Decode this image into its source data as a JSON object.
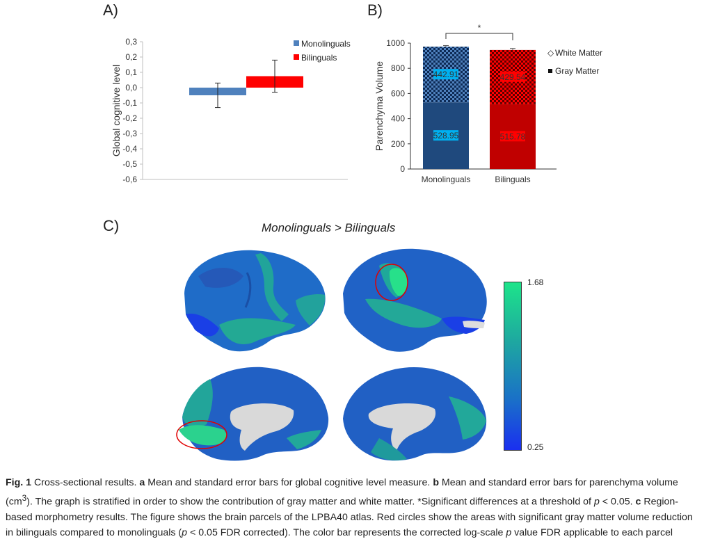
{
  "panels": {
    "a": "A)",
    "b": "B)",
    "c": "C)"
  },
  "chart_data": [
    {
      "type": "bar",
      "panel": "A",
      "ylabel": "Global cognitive level",
      "ylim": [
        -0.6,
        0.3
      ],
      "yticks": [
        "0,3",
        "0,2",
        "0,1",
        "0,0",
        "-0,1",
        "-0,2",
        "-0,3",
        "-0,4",
        "-0,5",
        "-0,6"
      ],
      "categories": [
        "Monolinguals",
        "Bilinguals"
      ],
      "series": [
        {
          "name": "Monolinguals",
          "color": "#4f81bd",
          "value": -0.05,
          "error": 0.08
        },
        {
          "name": "Bilinguals",
          "color": "#ff0000",
          "value": 0.075,
          "error": 0.105
        }
      ],
      "legend": "top-right"
    },
    {
      "type": "bar",
      "stacked": true,
      "panel": "B",
      "ylabel": "Parenchyma Volume",
      "ylim": [
        0,
        1000
      ],
      "yticks": [
        "1000",
        "800",
        "600",
        "400",
        "200",
        "0"
      ],
      "categories": [
        "Monolinguals",
        "Bilinguals"
      ],
      "series": [
        {
          "name": "Gray Matter",
          "values": [
            528.95,
            515.78
          ],
          "labels": [
            "528.95",
            "515.78"
          ]
        },
        {
          "name": "White Matter",
          "values": [
            442.91,
            429.54
          ],
          "labels": [
            "442.91",
            "429.54"
          ]
        }
      ],
      "errors": [
        9,
        12
      ],
      "colors": {
        "mono_gray": "#1f497d",
        "mono_white": "#4f81bd",
        "bi_gray": "#c00000",
        "bi_white": "#ff0000"
      },
      "significance": "*",
      "legend": "right"
    }
  ],
  "panel_c": {
    "title": "Monolinguals > Bilinguals",
    "colorbar_max": "1.68",
    "colorbar_min": "0.25"
  },
  "caption": {
    "fig": "Fig. 1",
    "t1": " Cross-sectional results. ",
    "a": "a",
    "t2": " Mean and standard error bars for global cognitive level measure. ",
    "b": "b",
    "t3": " Mean and standard error bars for parenchyma volume (cm",
    "sup": "3",
    "t4": "). The graph is stratified in order to show the contribution of gray matter and white matter. *Significant differences at a threshold of ",
    "p1": "p",
    "t5": " < 0.05. ",
    "c": "c",
    "t6": " Region-based morphometry results. The figure shows the brain parcels of the LPBA40 atlas. Red circles show the areas with significant gray matter volume reduction in bilinguals compared to monolinguals (",
    "p2": "p",
    "t7": " < 0.05 FDR corrected). The color bar represents the corrected log-scale ",
    "p3": "p",
    "t8": " value FDR applicable to each parcel"
  }
}
